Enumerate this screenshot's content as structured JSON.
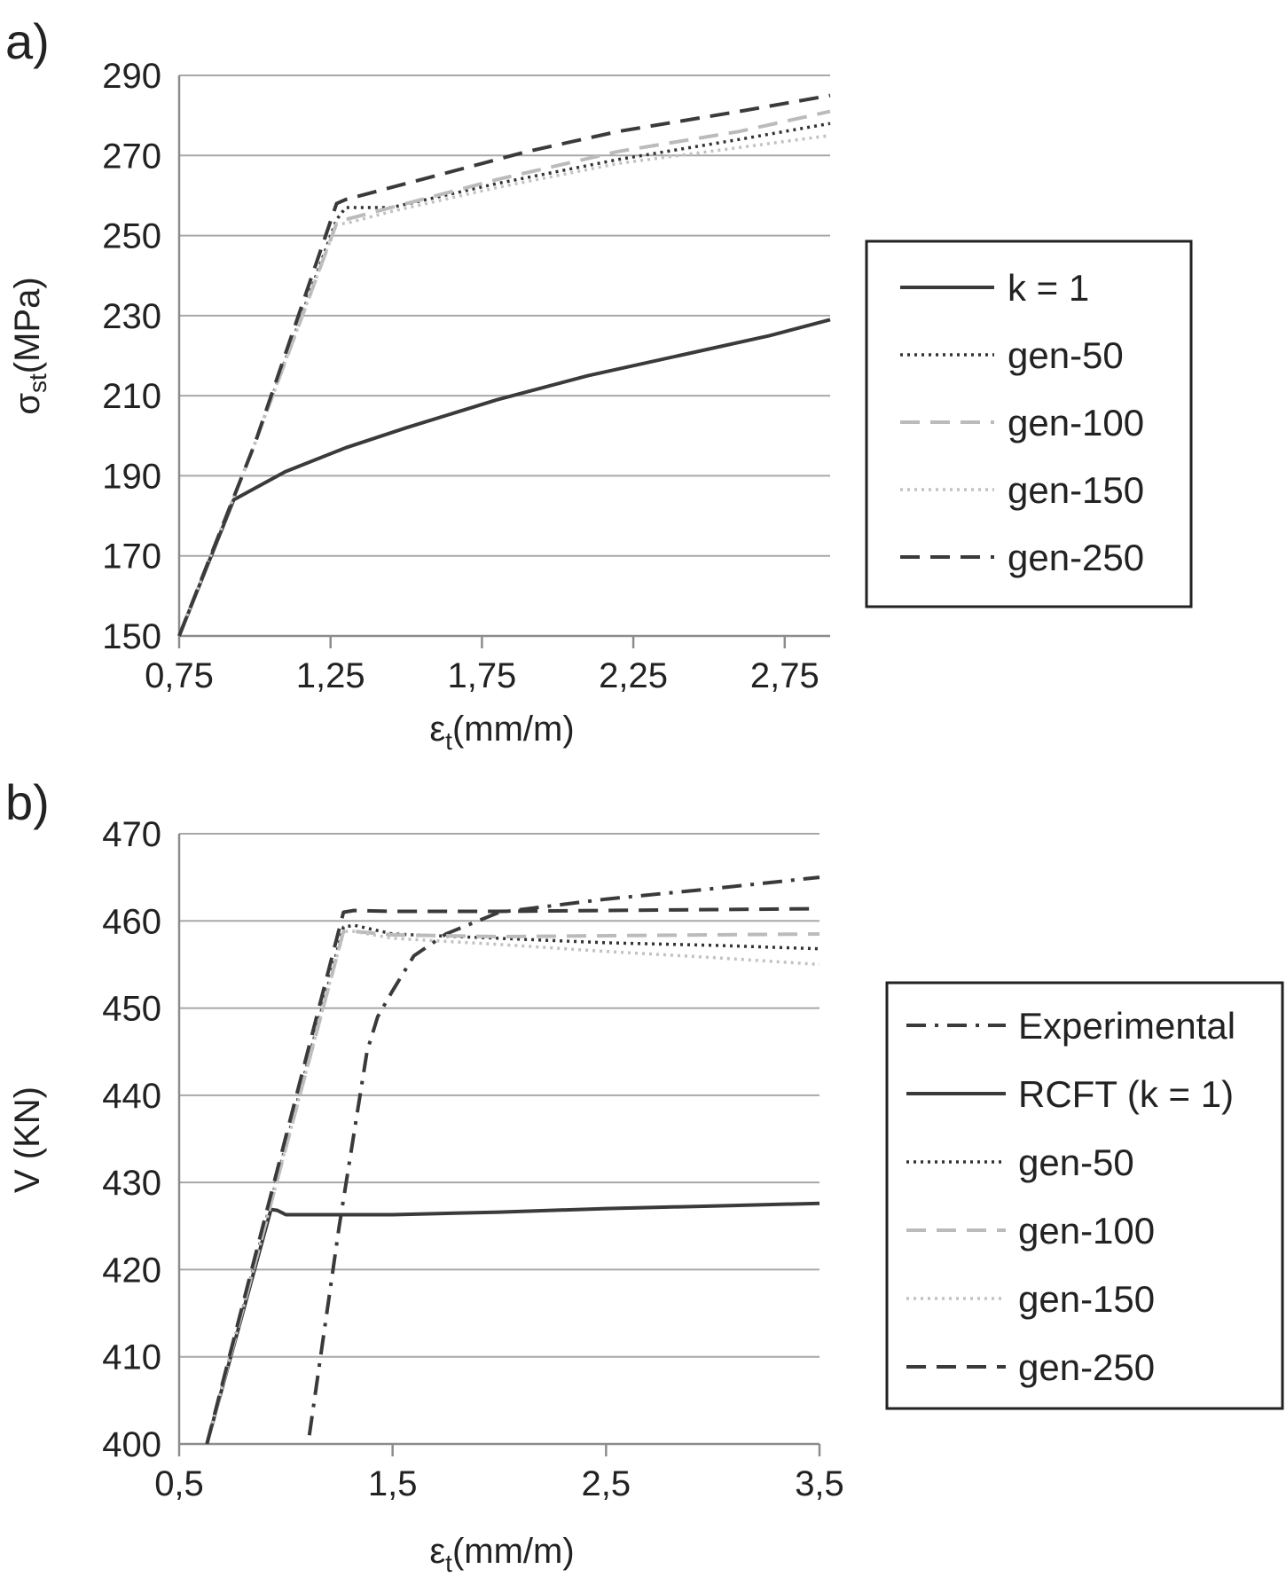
{
  "chart_data": [
    {
      "panel": "a)",
      "type": "line",
      "xlabel": "ε",
      "xlabel_sub": "t",
      "xlabel_unit": "(mm/m)",
      "ylabel": "σ",
      "ylabel_sub": "st",
      "ylabel_unit": "(MPa)",
      "xlim": [
        0.75,
        2.9
      ],
      "ylim": [
        150,
        290
      ],
      "xticks": [
        "0,75",
        "1,25",
        "1,75",
        "2,25",
        "2,75"
      ],
      "xtick_values": [
        0.75,
        1.25,
        1.75,
        2.25,
        2.75
      ],
      "yticks": [
        "150",
        "170",
        "190",
        "210",
        "230",
        "250",
        "270",
        "290"
      ],
      "ytick_values": [
        150,
        170,
        190,
        210,
        230,
        250,
        270,
        290
      ],
      "grid": "horizontal",
      "legend_position": "right",
      "series": [
        {
          "name": "k = 1",
          "style": "solid",
          "color": "#3a3a3a",
          "x": [
            0.75,
            0.93,
            1.1,
            1.3,
            1.5,
            1.8,
            2.1,
            2.4,
            2.7,
            2.9
          ],
          "y": [
            150,
            184,
            191,
            197,
            202,
            209,
            215,
            220,
            225,
            229
          ]
        },
        {
          "name": "gen-50",
          "style": "dotted",
          "color": "#333333",
          "x": [
            0.75,
            1.0,
            1.27,
            1.3,
            1.45,
            1.8,
            2.2,
            2.6,
            2.9
          ],
          "y": [
            150,
            198,
            254,
            257,
            257,
            263,
            269,
            274,
            278
          ]
        },
        {
          "name": "gen-100",
          "style": "dashed",
          "color": "#bbbbbb",
          "x": [
            0.75,
            1.0,
            1.27,
            1.3,
            1.45,
            1.8,
            2.2,
            2.6,
            2.9
          ],
          "y": [
            150,
            198,
            253,
            254,
            257,
            264,
            271,
            276,
            281
          ]
        },
        {
          "name": "gen-150",
          "style": "dotted",
          "color": "#c2c2c2",
          "x": [
            0.75,
            1.0,
            1.27,
            1.3,
            1.45,
            1.8,
            2.2,
            2.6,
            2.9
          ],
          "y": [
            150,
            198,
            253,
            253,
            256,
            262,
            268,
            272,
            275
          ]
        },
        {
          "name": "gen-250",
          "style": "dashed",
          "color": "#3a3a3a",
          "x": [
            0.75,
            1.0,
            1.27,
            1.3,
            1.6,
            1.9,
            2.2,
            2.6,
            2.9
          ],
          "y": [
            150,
            198,
            258,
            259,
            265,
            271,
            276,
            281,
            285
          ]
        }
      ]
    },
    {
      "panel": "b)",
      "type": "line",
      "xlabel": "ε",
      "xlabel_sub": "t",
      "xlabel_unit": "(mm/m)",
      "ylabel": "V (KN)",
      "xlim": [
        0.5,
        3.5
      ],
      "ylim": [
        400,
        470
      ],
      "xticks": [
        "0,5",
        "1,5",
        "2,5",
        "3,5"
      ],
      "xtick_values": [
        0.5,
        1.5,
        2.5,
        3.5
      ],
      "yticks": [
        "400",
        "410",
        "420",
        "430",
        "440",
        "450",
        "460",
        "470"
      ],
      "ytick_values": [
        400,
        410,
        420,
        430,
        440,
        450,
        460,
        470
      ],
      "grid": "horizontal",
      "legend_position": "right",
      "series": [
        {
          "name": "Experimental",
          "style": "dashdot",
          "color": "#3a3a3a",
          "x": [
            1.11,
            1.25,
            1.38,
            1.43,
            1.5,
            1.6,
            1.75,
            2.0,
            2.5,
            3.0,
            3.5
          ],
          "y": [
            401,
            425,
            445,
            449,
            452,
            456,
            458.5,
            461,
            462.5,
            463.7,
            465
          ]
        },
        {
          "name": "RCFT (k = 1)",
          "style": "solid",
          "color": "#3a3a3a",
          "x": [
            0.63,
            0.93,
            0.96,
            1.0,
            1.5,
            2.0,
            2.5,
            3.0,
            3.5
          ],
          "y": [
            400,
            426.9,
            426.8,
            426.3,
            426.3,
            426.6,
            427,
            427.3,
            427.6
          ]
        },
        {
          "name": "gen-50",
          "style": "dotted",
          "color": "#333333",
          "x": [
            0.63,
            1.27,
            1.32,
            1.5,
            2.0,
            2.5,
            3.0,
            3.5
          ],
          "y": [
            400,
            459.3,
            459.5,
            458.5,
            458.0,
            457.5,
            457.2,
            456.8
          ]
        },
        {
          "name": "gen-100",
          "style": "dashed",
          "color": "#bbbbbb",
          "x": [
            0.63,
            1.27,
            1.32,
            1.5,
            2.0,
            2.5,
            3.0,
            3.5
          ],
          "y": [
            400,
            458.8,
            458.8,
            458.4,
            458.2,
            458.3,
            458.4,
            458.5
          ]
        },
        {
          "name": "gen-150",
          "style": "dotted",
          "color": "#c2c2c2",
          "x": [
            0.63,
            1.27,
            1.32,
            1.5,
            2.0,
            2.5,
            3.0,
            3.5
          ],
          "y": [
            400,
            458.8,
            458.8,
            458.0,
            457.3,
            456.5,
            455.8,
            455.0
          ]
        },
        {
          "name": "gen-250",
          "style": "dashed",
          "color": "#3a3a3a",
          "x": [
            0.63,
            1.27,
            1.32,
            1.5,
            2.0,
            2.5,
            3.0,
            3.5
          ],
          "y": [
            400,
            461,
            461.2,
            461.1,
            461.1,
            461.2,
            461.3,
            461.4
          ]
        }
      ]
    }
  ]
}
